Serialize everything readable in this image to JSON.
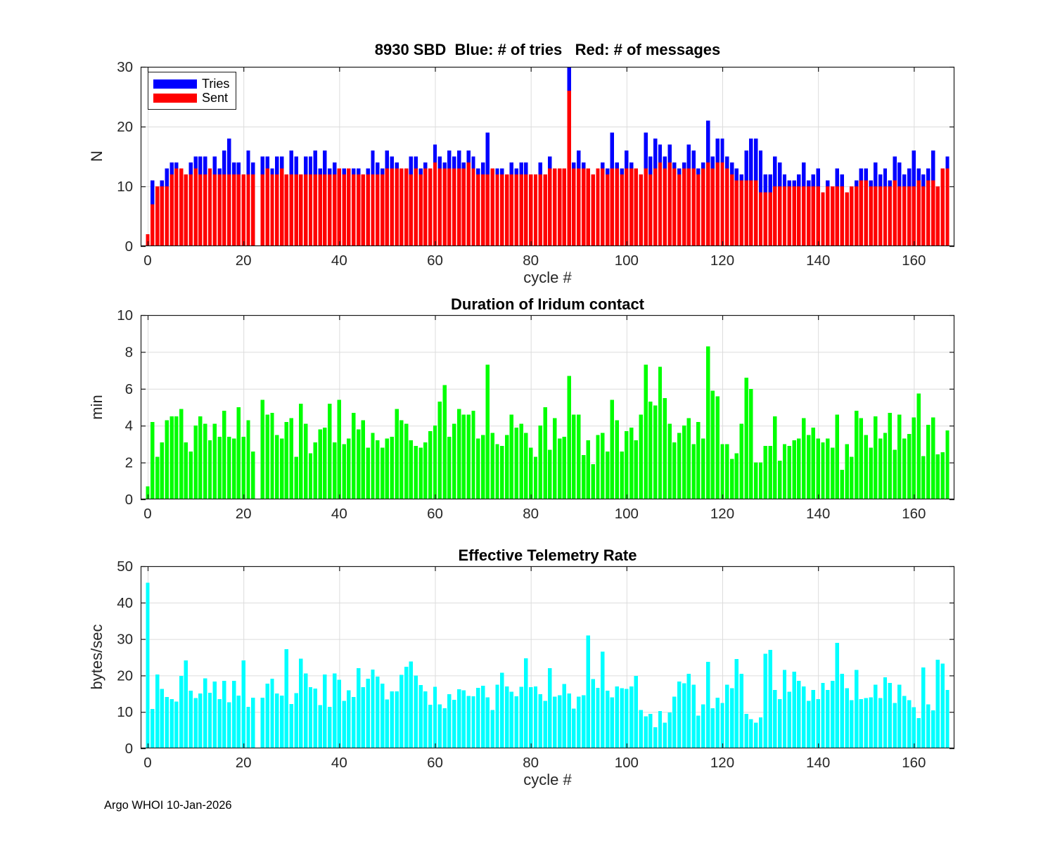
{
  "figure": {
    "footer": "Argo WHOI 10-Jan-2026",
    "background": "#ffffff"
  },
  "chart_data": [
    {
      "type": "bar",
      "title": "8930 SBD  Blue: # of tries   Red: # of messages",
      "xlabel": "cycle #",
      "ylabel": "N",
      "xlim": [
        -1.5,
        168.5
      ],
      "ylim": [
        0,
        30
      ],
      "xticks": [
        0,
        20,
        40,
        60,
        80,
        100,
        120,
        140,
        160
      ],
      "yticks": [
        0,
        10,
        20,
        30
      ],
      "grid": true,
      "legend": {
        "position": "top-left",
        "entries": [
          {
            "label": "Tries",
            "color": "#0000ff"
          },
          {
            "label": "Sent",
            "color": "#ff0000"
          }
        ]
      },
      "x_start": 0,
      "note": "overlaid bars, Sent drawn in front of Tries; missing bar at cycle 23",
      "series": [
        {
          "name": "Tries",
          "color": "#0000ff",
          "values": [
            2,
            11,
            10,
            11,
            13,
            14,
            14,
            13,
            12,
            14,
            15,
            15,
            15,
            13,
            15,
            13,
            16,
            18,
            14,
            14,
            12,
            16,
            14,
            0,
            15,
            15,
            13,
            15,
            15,
            12,
            16,
            15,
            12,
            15,
            15,
            16,
            13,
            16,
            13,
            14,
            13,
            13,
            13,
            13,
            13,
            12,
            13,
            16,
            14,
            13,
            16,
            15,
            14,
            13,
            13,
            15,
            15,
            13,
            14,
            13,
            17,
            15,
            14,
            16,
            15,
            16,
            14,
            16,
            15,
            13,
            14,
            19,
            13,
            13,
            13,
            12,
            14,
            13,
            14,
            14,
            12,
            12,
            14,
            12,
            15,
            13,
            13,
            13,
            30,
            14,
            16,
            14,
            13,
            12,
            13,
            14,
            13,
            19,
            14,
            13,
            16,
            14,
            13,
            12,
            19,
            15,
            18,
            17,
            15,
            17,
            14,
            13,
            14,
            17,
            16,
            13,
            14,
            21,
            15,
            18,
            18,
            15,
            14,
            13,
            12,
            16,
            18,
            18,
            16,
            12,
            12,
            15,
            14,
            12,
            11,
            11,
            12,
            14,
            11,
            12,
            13,
            9,
            11,
            10,
            13,
            12,
            9,
            10,
            11,
            13,
            13,
            11,
            14,
            12,
            13,
            11,
            15,
            14,
            12,
            13,
            16,
            13,
            12,
            13,
            16,
            10,
            13,
            15
          ]
        },
        {
          "name": "Sent",
          "color": "#ff0000",
          "values": [
            2,
            7,
            10,
            10,
            10,
            12,
            13,
            13,
            12,
            12,
            13,
            12,
            12,
            13,
            12,
            12,
            12,
            12,
            12,
            12,
            12,
            12,
            12,
            0,
            12,
            13,
            12,
            12,
            13,
            12,
            12,
            12,
            12,
            12,
            12,
            12,
            12,
            12,
            12,
            12,
            13,
            12,
            13,
            12,
            12,
            12,
            12,
            12,
            12,
            12,
            13,
            13,
            13,
            13,
            13,
            12,
            13,
            12,
            13,
            13,
            14,
            13,
            13,
            13,
            13,
            13,
            13,
            14,
            13,
            12,
            12,
            12,
            13,
            12,
            12,
            12,
            12,
            12,
            12,
            12,
            12,
            12,
            12,
            12,
            13,
            13,
            13,
            13,
            26,
            13,
            13,
            13,
            13,
            12,
            13,
            13,
            12,
            13,
            13,
            12,
            13,
            13,
            13,
            12,
            13,
            12,
            13,
            14,
            13,
            14,
            13,
            12,
            13,
            13,
            13,
            12,
            13,
            14,
            13,
            14,
            14,
            13,
            12,
            11,
            11,
            11,
            11,
            11,
            9,
            9,
            9,
            10,
            10,
            10,
            10,
            10,
            10,
            10,
            10,
            10,
            10,
            9,
            10,
            10,
            10,
            10,
            9,
            10,
            10,
            11,
            11,
            10,
            10,
            10,
            10,
            10,
            11,
            10,
            10,
            10,
            10,
            11,
            10,
            11,
            11,
            10,
            13,
            13
          ]
        }
      ]
    },
    {
      "type": "bar",
      "title": "Duration of Iridum contact",
      "xlabel": "",
      "ylabel": "min",
      "xlim": [
        -1.5,
        168.5
      ],
      "ylim": [
        0,
        10
      ],
      "xticks": [
        0,
        20,
        40,
        60,
        80,
        100,
        120,
        140,
        160
      ],
      "yticks": [
        0,
        2,
        4,
        6,
        8,
        10
      ],
      "grid": true,
      "x_start": 0,
      "series": [
        {
          "name": "Duration",
          "color": "#00ff00",
          "values": [
            0.7,
            4.2,
            2.3,
            3.1,
            4.3,
            4.5,
            4.5,
            4.9,
            3.1,
            2.6,
            4.0,
            4.5,
            4.1,
            3.2,
            4.1,
            3.4,
            4.8,
            3.4,
            3.3,
            5.0,
            3.4,
            4.3,
            2.6,
            0,
            5.4,
            4.6,
            4.7,
            3.5,
            3.3,
            4.2,
            4.4,
            2.3,
            5.2,
            4.1,
            2.5,
            3.1,
            3.8,
            3.9,
            5.2,
            3.1,
            5.4,
            3.0,
            3.3,
            4.7,
            3.8,
            4.3,
            2.8,
            3.6,
            3.2,
            2.8,
            3.3,
            3.4,
            4.9,
            4.3,
            4.1,
            3.2,
            2.9,
            2.8,
            3.1,
            3.7,
            4.0,
            5.3,
            6.2,
            3.4,
            4.1,
            4.9,
            4.6,
            4.6,
            4.8,
            3.3,
            3.5,
            7.3,
            3.6,
            3.0,
            2.9,
            3.5,
            4.6,
            3.9,
            4.1,
            3.6,
            2.8,
            2.3,
            4.0,
            5.0,
            2.7,
            4.4,
            3.3,
            3.4,
            6.7,
            4.6,
            4.6,
            2.4,
            3.2,
            1.9,
            3.5,
            3.6,
            2.6,
            5.4,
            4.3,
            2.6,
            3.7,
            3.9,
            3.2,
            4.6,
            7.3,
            5.3,
            5.1,
            7.2,
            5.5,
            4.1,
            3.1,
            3.6,
            4.0,
            4.4,
            3.0,
            4.2,
            3.3,
            8.3,
            5.9,
            5.6,
            3.0,
            3.0,
            2.2,
            2.5,
            4.1,
            6.6,
            6.0,
            2.0,
            2.0,
            2.9,
            2.9,
            4.5,
            2.1,
            3.0,
            2.9,
            3.2,
            3.3,
            4.4,
            3.5,
            3.9,
            3.3,
            3.1,
            3.3,
            2.8,
            4.6,
            1.6,
            3.0,
            2.3,
            4.8,
            4.4,
            3.5,
            2.8,
            4.5,
            3.3,
            3.6,
            4.7,
            2.7,
            4.6,
            3.3,
            3.55,
            4.45,
            5.75,
            2.35,
            4.05,
            4.45,
            2.45,
            2.55,
            3.75
          ]
        }
      ]
    },
    {
      "type": "bar",
      "title": "Effective Telemetry Rate",
      "xlabel": "cycle #",
      "ylabel": "bytes/sec",
      "xlim": [
        -1.5,
        168.5
      ],
      "ylim": [
        0,
        50
      ],
      "xticks": [
        0,
        20,
        40,
        60,
        80,
        100,
        120,
        140,
        160
      ],
      "yticks": [
        0,
        10,
        20,
        30,
        40,
        50
      ],
      "grid": true,
      "x_start": 0,
      "series": [
        {
          "name": "Rate",
          "color": "#00ffff",
          "values": [
            45.5,
            10.8,
            20.3,
            16.3,
            14.1,
            13.5,
            12.8,
            19.9,
            24.1,
            15.8,
            13.8,
            15.1,
            19.2,
            15.3,
            18.3,
            13.5,
            18.5,
            12.6,
            18.5,
            14.5,
            24.1,
            11.4,
            13.9,
            0,
            13.9,
            17.8,
            19.1,
            15.1,
            14.5,
            27.2,
            12.2,
            15.2,
            24.6,
            20.6,
            16.8,
            16.4,
            11.9,
            20.3,
            11.4,
            20.6,
            18.8,
            13.0,
            15.9,
            14.1,
            22.0,
            16.8,
            19.1,
            21.6,
            19.7,
            17.8,
            13.4,
            15.6,
            15.6,
            20.2,
            22.4,
            23.8,
            20.0,
            17.4,
            15.6,
            12.0,
            16.9,
            12.1,
            11.0,
            14.9,
            13.3,
            16.2,
            15.9,
            14.4,
            14.3,
            16.6,
            17.2,
            14.0,
            10.5,
            17.5,
            20.8,
            17.0,
            15.5,
            14.3,
            16.9,
            24.7,
            16.8,
            17.0,
            14.9,
            13.0,
            22.0,
            14.2,
            14.6,
            17.7,
            15.1,
            10.9,
            14.2,
            14.6,
            31.0,
            19.0,
            16.6,
            26.5,
            15.8,
            14.0,
            17.0,
            16.5,
            16.3,
            17.0,
            19.9,
            10.5,
            8.8,
            9.5,
            5.8,
            10.2,
            7.0,
            9.8,
            14.2,
            18.3,
            17.9,
            20.5,
            17.5,
            9.0,
            12.1,
            23.7,
            11.0,
            13.9,
            12.5,
            17.5,
            16.5,
            24.5,
            20.5,
            9.5,
            8.0,
            7.0,
            8.5,
            26.0,
            27.0,
            16.0,
            13.5,
            21.5,
            15.5,
            21.0,
            18.5,
            17.0,
            13.0,
            16.0,
            13.5,
            18.0,
            16.0,
            18.5,
            29.0,
            20.5,
            16.5,
            13.2,
            21.5,
            13.5,
            13.8,
            14.0,
            17.5,
            13.8,
            19.5,
            18.0,
            12.5,
            17.5,
            14.4,
            13.2,
            11.3,
            8.3,
            22.2,
            12.1,
            10.4,
            24.3,
            23.3,
            16.0
          ]
        }
      ]
    }
  ]
}
